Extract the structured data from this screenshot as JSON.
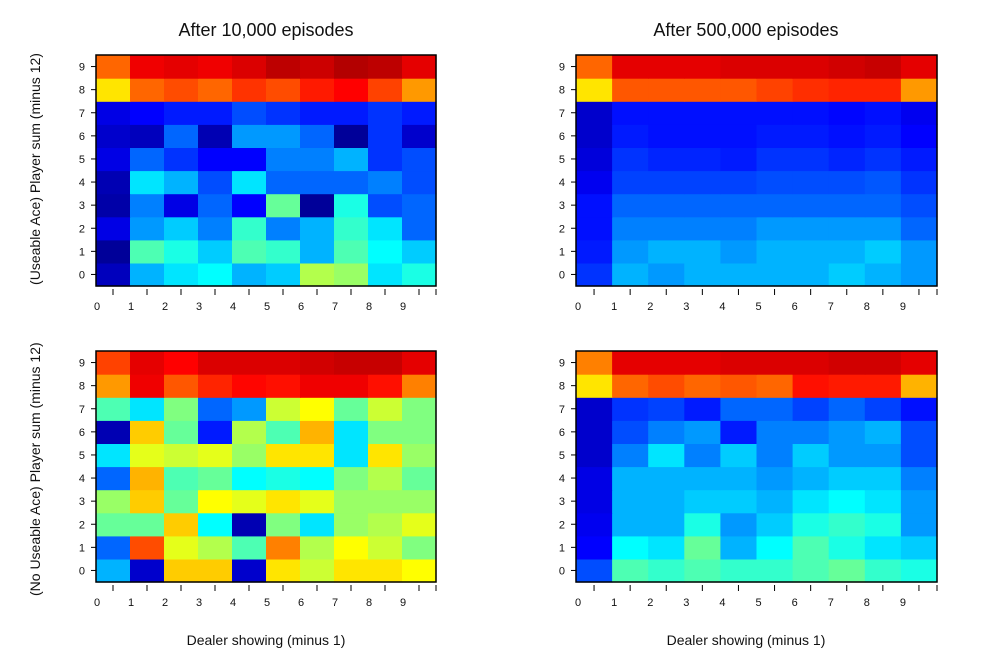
{
  "titles": {
    "left": "After 10,000 episodes",
    "right": "After 500,000 episodes"
  },
  "axis_labels": {
    "ylabel_top": "(Useable Ace) Player sum (minus 12)",
    "ylabel_bottom": "(No Useable Ace) Player sum (minus 12)",
    "xlabel_left": "Dealer showing (minus 1)",
    "xlabel_right": "Dealer showing (minus 1)"
  },
  "chart_data": [
    {
      "type": "heatmap",
      "title": "After 10,000 episodes",
      "ylabel": "(Useable Ace) Player sum (minus 12)",
      "xlabel": "",
      "x": [
        0,
        1,
        2,
        3,
        4,
        5,
        6,
        7,
        8,
        9
      ],
      "y": [
        0,
        1,
        2,
        3,
        4,
        5,
        6,
        7,
        8,
        9
      ],
      "colormap": "jet",
      "value_range": [
        -1,
        1
      ],
      "values": [
        [
          -0.88,
          -0.4,
          -0.3,
          -0.25,
          -0.4,
          -0.35,
          0.1,
          0.05,
          -0.3,
          -0.2
        ],
        [
          -0.95,
          -0.1,
          -0.2,
          -0.35,
          -0.1,
          -0.15,
          -0.4,
          -0.1,
          -0.25,
          -0.35
        ],
        [
          -0.8,
          -0.45,
          -0.35,
          -0.5,
          -0.15,
          -0.5,
          -0.4,
          -0.15,
          -0.3,
          -0.55
        ],
        [
          -0.92,
          -0.5,
          -0.8,
          -0.55,
          -0.75,
          -0.05,
          -0.95,
          -0.2,
          -0.6,
          -0.55
        ],
        [
          -0.9,
          -0.3,
          -0.4,
          -0.6,
          -0.3,
          -0.55,
          -0.55,
          -0.55,
          -0.5,
          -0.6
        ],
        [
          -0.8,
          -0.55,
          -0.65,
          -0.75,
          -0.75,
          -0.5,
          -0.5,
          -0.4,
          -0.65,
          -0.6
        ],
        [
          -0.85,
          -0.88,
          -0.55,
          -0.9,
          -0.45,
          -0.45,
          -0.55,
          -0.95,
          -0.65,
          -0.85
        ],
        [
          -0.8,
          -0.75,
          -0.7,
          -0.7,
          -0.6,
          -0.65,
          -0.7,
          -0.7,
          -0.65,
          -0.7
        ],
        [
          0.3,
          0.55,
          0.6,
          0.55,
          0.65,
          0.6,
          0.7,
          0.75,
          0.62,
          0.45
        ],
        [
          0.55,
          0.78,
          0.8,
          0.78,
          0.82,
          0.88,
          0.85,
          0.9,
          0.88,
          0.8
        ]
      ]
    },
    {
      "type": "heatmap",
      "title": "After 500,000 episodes",
      "ylabel": "",
      "xlabel": "",
      "x": [
        0,
        1,
        2,
        3,
        4,
        5,
        6,
        7,
        8,
        9
      ],
      "y": [
        0,
        1,
        2,
        3,
        4,
        5,
        6,
        7,
        8,
        9
      ],
      "colormap": "jet",
      "value_range": [
        -1,
        1
      ],
      "values": [
        [
          -0.65,
          -0.4,
          -0.45,
          -0.4,
          -0.4,
          -0.4,
          -0.4,
          -0.35,
          -0.4,
          -0.45
        ],
        [
          -0.7,
          -0.45,
          -0.4,
          -0.4,
          -0.45,
          -0.4,
          -0.4,
          -0.4,
          -0.35,
          -0.45
        ],
        [
          -0.72,
          -0.5,
          -0.5,
          -0.5,
          -0.5,
          -0.45,
          -0.45,
          -0.45,
          -0.45,
          -0.55
        ],
        [
          -0.72,
          -0.55,
          -0.55,
          -0.55,
          -0.55,
          -0.55,
          -0.55,
          -0.55,
          -0.55,
          -0.6
        ],
        [
          -0.78,
          -0.62,
          -0.62,
          -0.62,
          -0.62,
          -0.6,
          -0.6,
          -0.6,
          -0.58,
          -0.65
        ],
        [
          -0.82,
          -0.65,
          -0.68,
          -0.68,
          -0.7,
          -0.65,
          -0.65,
          -0.68,
          -0.65,
          -0.7
        ],
        [
          -0.85,
          -0.7,
          -0.72,
          -0.72,
          -0.72,
          -0.7,
          -0.7,
          -0.72,
          -0.7,
          -0.75
        ],
        [
          -0.85,
          -0.72,
          -0.72,
          -0.72,
          -0.72,
          -0.72,
          -0.72,
          -0.74,
          -0.72,
          -0.78
        ],
        [
          0.3,
          0.58,
          0.58,
          0.58,
          0.58,
          0.62,
          0.66,
          0.68,
          0.68,
          0.45
        ],
        [
          0.55,
          0.8,
          0.8,
          0.8,
          0.82,
          0.82,
          0.82,
          0.84,
          0.86,
          0.8
        ]
      ]
    },
    {
      "type": "heatmap",
      "title": "",
      "ylabel": "(No Useable Ace) Player sum (minus 12)",
      "xlabel": "Dealer showing (minus 1)",
      "x": [
        0,
        1,
        2,
        3,
        4,
        5,
        6,
        7,
        8,
        9
      ],
      "y": [
        0,
        1,
        2,
        3,
        4,
        5,
        6,
        7,
        8,
        9
      ],
      "colormap": "jet",
      "value_range": [
        -1,
        1
      ],
      "values": [
        [
          -0.4,
          -0.85,
          0.35,
          0.35,
          -0.85,
          0.3,
          0.15,
          0.3,
          0.3,
          0.25
        ],
        [
          -0.55,
          0.6,
          0.2,
          0.1,
          -0.1,
          0.5,
          0.1,
          0.25,
          0.15,
          0.0
        ],
        [
          -0.05,
          -0.05,
          0.35,
          -0.25,
          -0.9,
          0.0,
          -0.3,
          0.05,
          0.1,
          0.2
        ],
        [
          0.05,
          0.35,
          -0.05,
          0.25,
          0.2,
          0.3,
          0.2,
          0.05,
          0.05,
          0.05
        ],
        [
          -0.55,
          0.4,
          -0.1,
          -0.05,
          -0.25,
          -0.2,
          -0.25,
          0.0,
          0.1,
          -0.05
        ],
        [
          -0.3,
          0.2,
          0.15,
          0.2,
          0.05,
          0.3,
          0.3,
          -0.3,
          0.3,
          0.05
        ],
        [
          -0.9,
          0.35,
          -0.05,
          -0.7,
          0.1,
          -0.1,
          0.4,
          -0.3,
          0.0,
          0.0
        ],
        [
          -0.1,
          -0.3,
          0.0,
          -0.55,
          -0.45,
          0.15,
          0.25,
          -0.05,
          0.15,
          0.0
        ],
        [
          0.45,
          0.78,
          0.58,
          0.68,
          0.74,
          0.72,
          0.78,
          0.78,
          0.72,
          0.5
        ],
        [
          0.62,
          0.8,
          0.75,
          0.82,
          0.82,
          0.82,
          0.84,
          0.86,
          0.86,
          0.8
        ]
      ]
    },
    {
      "type": "heatmap",
      "title": "",
      "ylabel": "",
      "xlabel": "Dealer showing (minus 1)",
      "x": [
        0,
        1,
        2,
        3,
        4,
        5,
        6,
        7,
        8,
        9
      ],
      "y": [
        0,
        1,
        2,
        3,
        4,
        5,
        6,
        7,
        8,
        9
      ],
      "colormap": "jet",
      "value_range": [
        -1,
        1
      ],
      "values": [
        [
          -0.6,
          -0.1,
          -0.15,
          -0.1,
          -0.15,
          -0.15,
          -0.1,
          -0.05,
          -0.15,
          -0.2
        ],
        [
          -0.75,
          -0.25,
          -0.3,
          -0.05,
          -0.4,
          -0.25,
          -0.1,
          -0.2,
          -0.3,
          -0.35
        ],
        [
          -0.78,
          -0.4,
          -0.4,
          -0.2,
          -0.45,
          -0.35,
          -0.2,
          -0.15,
          -0.2,
          -0.45
        ],
        [
          -0.8,
          -0.4,
          -0.4,
          -0.35,
          -0.35,
          -0.4,
          -0.3,
          -0.25,
          -0.3,
          -0.45
        ],
        [
          -0.8,
          -0.4,
          -0.4,
          -0.4,
          -0.4,
          -0.45,
          -0.4,
          -0.35,
          -0.35,
          -0.5
        ],
        [
          -0.85,
          -0.5,
          -0.3,
          -0.5,
          -0.35,
          -0.5,
          -0.35,
          -0.45,
          -0.45,
          -0.6
        ],
        [
          -0.85,
          -0.6,
          -0.5,
          -0.45,
          -0.7,
          -0.5,
          -0.5,
          -0.45,
          -0.4,
          -0.6
        ],
        [
          -0.85,
          -0.65,
          -0.62,
          -0.7,
          -0.55,
          -0.55,
          -0.62,
          -0.55,
          -0.62,
          -0.72
        ],
        [
          0.3,
          0.55,
          0.6,
          0.55,
          0.58,
          0.55,
          0.72,
          0.7,
          0.7,
          0.4
        ],
        [
          0.5,
          0.8,
          0.8,
          0.8,
          0.82,
          0.82,
          0.82,
          0.84,
          0.84,
          0.8
        ]
      ]
    }
  ]
}
